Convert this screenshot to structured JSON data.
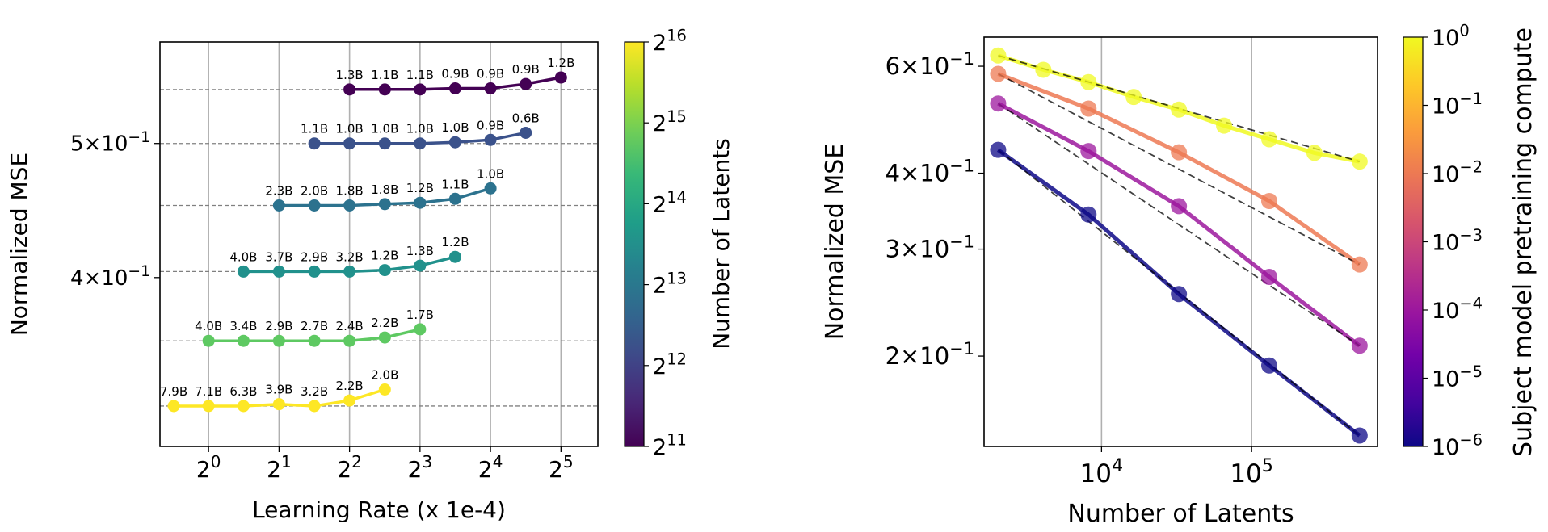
{
  "chart_data": [
    {
      "type": "line",
      "xlabel": "Learning Rate (x 1e-4)",
      "ylabel": "Normalized MSE",
      "xscale": "log2",
      "yscale": "log",
      "xlim": [
        0.62,
        46
      ],
      "ylim": [
        0.302,
        0.592
      ],
      "xticks": [
        {
          "value": 1,
          "base": "2",
          "exp": "0"
        },
        {
          "value": 2,
          "base": "2",
          "exp": "1"
        },
        {
          "value": 4,
          "base": "2",
          "exp": "2"
        },
        {
          "value": 8,
          "base": "2",
          "exp": "3"
        },
        {
          "value": 16,
          "base": "2",
          "exp": "4"
        },
        {
          "value": 32,
          "base": "2",
          "exp": "5"
        }
      ],
      "yticks": [
        {
          "value": 0.4,
          "mant": "4",
          "exp": "−1"
        },
        {
          "value": 0.5,
          "mant": "5",
          "exp": "−1"
        }
      ],
      "grid": "vertical",
      "colorbar": {
        "label": "Number of Latents",
        "colormap": "viridis",
        "range_log2": [
          11,
          16
        ],
        "ticks": [
          {
            "value": 11,
            "base": "2",
            "exp": "11"
          },
          {
            "value": 12,
            "base": "2",
            "exp": "12"
          },
          {
            "value": 13,
            "base": "2",
            "exp": "13"
          },
          {
            "value": 14,
            "base": "2",
            "exp": "14"
          },
          {
            "value": 15,
            "base": "2",
            "exp": "15"
          },
          {
            "value": 16,
            "base": "2",
            "exp": "16"
          }
        ]
      },
      "series": [
        {
          "name": "2^11",
          "color": "#440154",
          "best": 0.547,
          "x": [
            4,
            5.66,
            8,
            11.31,
            16,
            22.63,
            32
          ],
          "y": [
            0.547,
            0.547,
            0.547,
            0.548,
            0.548,
            0.552,
            0.558
          ],
          "labels": [
            "1.3B",
            "1.1B",
            "1.1B",
            "0.9B",
            "0.9B",
            "0.9B",
            "1.2B"
          ]
        },
        {
          "name": "2^12",
          "color": "#3b528b",
          "best": 0.5,
          "x": [
            2.83,
            4,
            5.66,
            8,
            11.31,
            16,
            22.63
          ],
          "y": [
            0.5,
            0.5,
            0.5,
            0.5,
            0.501,
            0.503,
            0.509
          ],
          "labels": [
            "1.1B",
            "1.0B",
            "1.0B",
            "1.0B",
            "1.0B",
            "0.9B",
            "0.6B"
          ]
        },
        {
          "name": "2^13",
          "color": "#2c728e",
          "best": 0.451,
          "x": [
            2,
            2.83,
            4,
            5.66,
            8,
            11.31,
            16
          ],
          "y": [
            0.451,
            0.451,
            0.451,
            0.452,
            0.453,
            0.456,
            0.464
          ],
          "labels": [
            "2.3B",
            "2.0B",
            "1.8B",
            "1.8B",
            "1.2B",
            "1.1B",
            "1.0B"
          ]
        },
        {
          "name": "2^14",
          "color": "#21918c",
          "best": 0.404,
          "x": [
            1.41,
            2,
            2.83,
            4,
            5.66,
            8,
            11.31
          ],
          "y": [
            0.404,
            0.404,
            0.404,
            0.404,
            0.405,
            0.408,
            0.414
          ],
          "labels": [
            "4.0B",
            "3.7B",
            "2.9B",
            "3.2B",
            "1.2B",
            "1.3B",
            "1.2B"
          ]
        },
        {
          "name": "2^15",
          "color": "#5ec962",
          "best": 0.36,
          "x": [
            1,
            1.41,
            2,
            2.83,
            4,
            5.66,
            8
          ],
          "y": [
            0.36,
            0.36,
            0.36,
            0.36,
            0.36,
            0.362,
            0.367
          ],
          "labels": [
            "4.0B",
            "3.4B",
            "2.9B",
            "2.7B",
            "2.4B",
            "2.2B",
            "1.7B"
          ]
        },
        {
          "name": "2^16",
          "color": "#fde725",
          "best": 0.323,
          "x": [
            0.71,
            1,
            1.41,
            2,
            2.83,
            4,
            5.66
          ],
          "y": [
            0.323,
            0.323,
            0.323,
            0.324,
            0.323,
            0.326,
            0.332
          ],
          "labels": [
            "7.9B",
            "7.1B",
            "6.3B",
            "3.9B",
            "3.2B",
            "2.2B",
            "2.0B"
          ]
        }
      ]
    },
    {
      "type": "line",
      "xlabel": "Number of Latents",
      "ylabel": "Normalized MSE",
      "xscale": "log",
      "yscale": "log",
      "xlim": [
        1650,
        690000
      ],
      "ylim": [
        0.142,
        0.67
      ],
      "xticks": [
        {
          "value": 10000,
          "base": "10",
          "exp": "4"
        },
        {
          "value": 100000,
          "base": "10",
          "exp": "5"
        }
      ],
      "yticks": [
        {
          "value": 0.2,
          "mant": "2",
          "exp": "−1"
        },
        {
          "value": 0.3,
          "mant": "3",
          "exp": "−1"
        },
        {
          "value": 0.4,
          "mant": "4",
          "exp": "−1"
        },
        {
          "value": 0.6,
          "mant": "6",
          "exp": "−1"
        }
      ],
      "grid": "vertical",
      "colorbar": {
        "label": "Subject model pretraining compute",
        "colormap": "plasma",
        "range_log10": [
          -6,
          0
        ],
        "ticks": [
          {
            "value": -6,
            "base": "10",
            "exp": "−6"
          },
          {
            "value": -5,
            "base": "10",
            "exp": "−5"
          },
          {
            "value": -4,
            "base": "10",
            "exp": "−4"
          },
          {
            "value": -3,
            "base": "10",
            "exp": "−3"
          },
          {
            "value": -2,
            "base": "10",
            "exp": "−2"
          },
          {
            "value": -1,
            "base": "10",
            "exp": "−1"
          },
          {
            "value": 0,
            "base": "10",
            "exp": "0"
          }
        ]
      },
      "series": [
        {
          "name": "10^0",
          "color": "#f0f921",
          "x": [
            2048,
            4096,
            8192,
            16384,
            32768,
            65536,
            131072,
            262144,
            524288
          ],
          "y": [
            0.625,
            0.592,
            0.565,
            0.534,
            0.509,
            0.479,
            0.455,
            0.432,
            0.418
          ]
        },
        {
          "name": "10^-2",
          "color": "#ed7953",
          "x": [
            2048,
            8192,
            32768,
            131072,
            524288
          ],
          "y": [
            0.583,
            0.511,
            0.433,
            0.36,
            0.283
          ]
        },
        {
          "name": "10^-4",
          "color": "#9c179e",
          "x": [
            2048,
            8192,
            32768,
            131072,
            524288
          ],
          "y": [
            0.521,
            0.435,
            0.353,
            0.27,
            0.208
          ]
        },
        {
          "name": "10^-6",
          "color": "#0d0887",
          "x": [
            2048,
            8192,
            32768,
            131072,
            524288
          ],
          "y": [
            0.437,
            0.342,
            0.253,
            0.193,
            0.148
          ]
        }
      ]
    }
  ]
}
